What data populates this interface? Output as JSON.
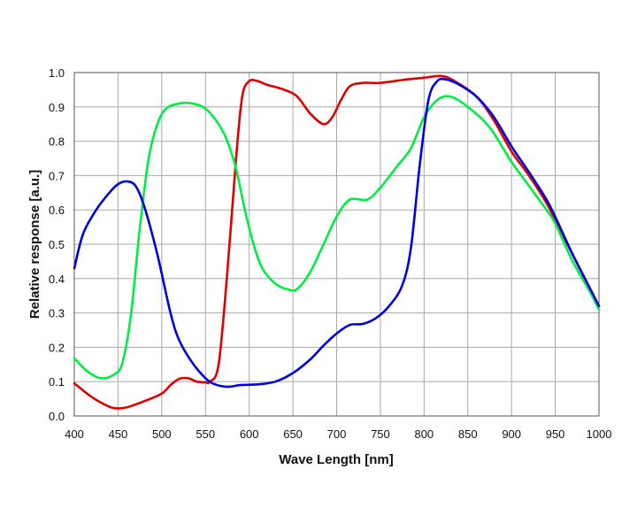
{
  "chart_data": {
    "type": "line",
    "title": "",
    "xlabel": "Wave Length [nm]",
    "ylabel": "Relative response  [a.u.]",
    "xlim": [
      400,
      1000
    ],
    "ylim": [
      0,
      1.0
    ],
    "grid": true,
    "legend": "none",
    "x_ticks": [
      "400",
      "450",
      "500",
      "550",
      "600",
      "650",
      "700",
      "750",
      "800",
      "850",
      "900",
      "950",
      "1000"
    ],
    "y_ticks": [
      "0.0",
      "0.1",
      "0.2",
      "0.3",
      "0.4",
      "0.5",
      "0.6",
      "0.7",
      "0.8",
      "0.9",
      "1.0"
    ],
    "series": [
      {
        "color": "#e00000",
        "points": [
          [
            400,
            0.095
          ],
          [
            420,
            0.055
          ],
          [
            440,
            0.027
          ],
          [
            450,
            0.022
          ],
          [
            460,
            0.025
          ],
          [
            480,
            0.043
          ],
          [
            500,
            0.065
          ],
          [
            510,
            0.09
          ],
          [
            520,
            0.108
          ],
          [
            530,
            0.11
          ],
          [
            540,
            0.1
          ],
          [
            550,
            0.098
          ],
          [
            555,
            0.1
          ],
          [
            565,
            0.15
          ],
          [
            575,
            0.42
          ],
          [
            585,
            0.75
          ],
          [
            592,
            0.93
          ],
          [
            600,
            0.975
          ],
          [
            610,
            0.975
          ],
          [
            620,
            0.965
          ],
          [
            640,
            0.95
          ],
          [
            655,
            0.93
          ],
          [
            670,
            0.88
          ],
          [
            685,
            0.85
          ],
          [
            695,
            0.87
          ],
          [
            705,
            0.92
          ],
          [
            715,
            0.96
          ],
          [
            730,
            0.97
          ],
          [
            750,
            0.97
          ],
          [
            780,
            0.98
          ],
          [
            800,
            0.985
          ],
          [
            820,
            0.99
          ],
          [
            835,
            0.975
          ],
          [
            860,
            0.93
          ],
          [
            880,
            0.86
          ],
          [
            900,
            0.77
          ],
          [
            920,
            0.7
          ],
          [
            940,
            0.62
          ],
          [
            950,
            0.57
          ],
          [
            970,
            0.47
          ],
          [
            990,
            0.37
          ],
          [
            1000,
            0.32
          ]
        ]
      },
      {
        "color": "#00ee44",
        "points": [
          [
            400,
            0.168
          ],
          [
            415,
            0.13
          ],
          [
            430,
            0.11
          ],
          [
            445,
            0.12
          ],
          [
            455,
            0.155
          ],
          [
            465,
            0.3
          ],
          [
            475,
            0.55
          ],
          [
            485,
            0.75
          ],
          [
            495,
            0.85
          ],
          [
            505,
            0.895
          ],
          [
            520,
            0.91
          ],
          [
            535,
            0.91
          ],
          [
            550,
            0.895
          ],
          [
            565,
            0.85
          ],
          [
            575,
            0.8
          ],
          [
            585,
            0.72
          ],
          [
            595,
            0.6
          ],
          [
            605,
            0.5
          ],
          [
            615,
            0.43
          ],
          [
            630,
            0.385
          ],
          [
            645,
            0.368
          ],
          [
            655,
            0.37
          ],
          [
            670,
            0.42
          ],
          [
            685,
            0.5
          ],
          [
            700,
            0.58
          ],
          [
            715,
            0.63
          ],
          [
            735,
            0.63
          ],
          [
            750,
            0.665
          ],
          [
            770,
            0.73
          ],
          [
            785,
            0.78
          ],
          [
            800,
            0.87
          ],
          [
            815,
            0.92
          ],
          [
            830,
            0.93
          ],
          [
            850,
            0.9
          ],
          [
            875,
            0.84
          ],
          [
            900,
            0.74
          ],
          [
            920,
            0.67
          ],
          [
            940,
            0.6
          ],
          [
            950,
            0.56
          ],
          [
            970,
            0.45
          ],
          [
            990,
            0.36
          ],
          [
            1000,
            0.31
          ]
        ]
      },
      {
        "color": "#0000dd",
        "points": [
          [
            400,
            0.43
          ],
          [
            410,
            0.53
          ],
          [
            425,
            0.6
          ],
          [
            440,
            0.65
          ],
          [
            450,
            0.675
          ],
          [
            460,
            0.683
          ],
          [
            470,
            0.67
          ],
          [
            480,
            0.61
          ],
          [
            495,
            0.47
          ],
          [
            510,
            0.3
          ],
          [
            520,
            0.22
          ],
          [
            535,
            0.155
          ],
          [
            550,
            0.11
          ],
          [
            560,
            0.093
          ],
          [
            575,
            0.085
          ],
          [
            590,
            0.09
          ],
          [
            610,
            0.092
          ],
          [
            630,
            0.1
          ],
          [
            650,
            0.125
          ],
          [
            670,
            0.165
          ],
          [
            685,
            0.205
          ],
          [
            700,
            0.24
          ],
          [
            715,
            0.265
          ],
          [
            730,
            0.268
          ],
          [
            745,
            0.285
          ],
          [
            760,
            0.32
          ],
          [
            775,
            0.38
          ],
          [
            785,
            0.49
          ],
          [
            795,
            0.73
          ],
          [
            805,
            0.92
          ],
          [
            815,
            0.975
          ],
          [
            825,
            0.98
          ],
          [
            840,
            0.965
          ],
          [
            860,
            0.93
          ],
          [
            880,
            0.87
          ],
          [
            900,
            0.785
          ],
          [
            920,
            0.71
          ],
          [
            940,
            0.63
          ],
          [
            950,
            0.58
          ],
          [
            970,
            0.47
          ],
          [
            990,
            0.37
          ],
          [
            1000,
            0.32
          ]
        ]
      }
    ]
  }
}
